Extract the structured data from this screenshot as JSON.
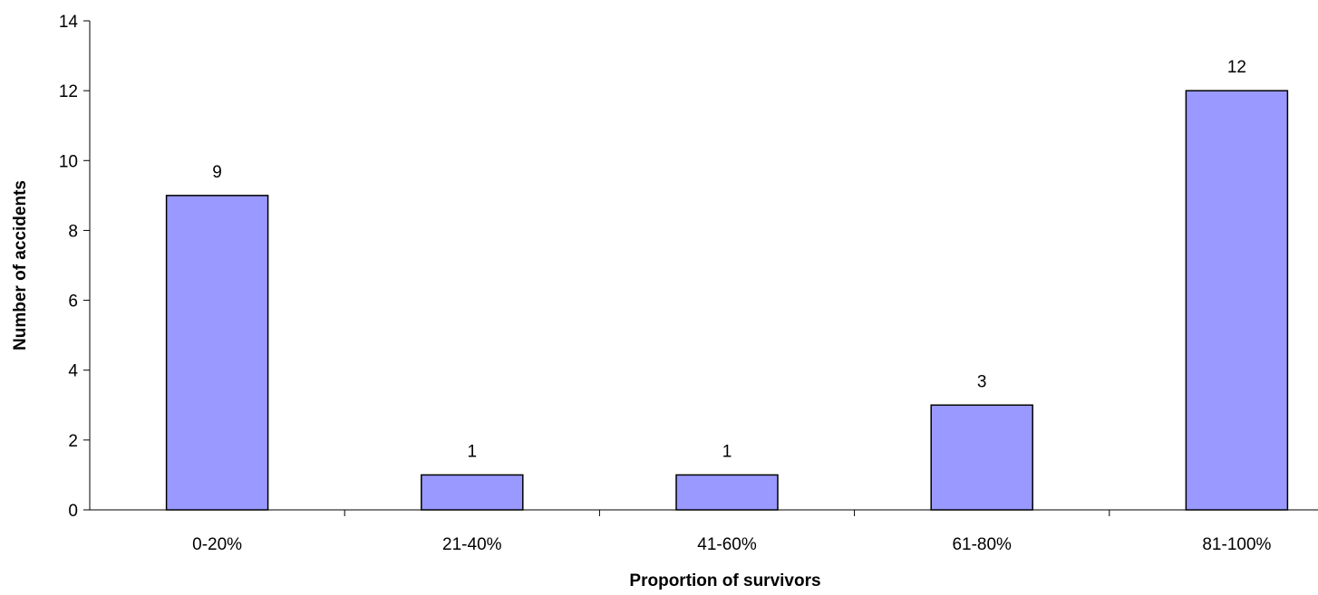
{
  "chart_data": {
    "type": "bar",
    "categories": [
      "0-20%",
      "21-40%",
      "41-60%",
      "61-80%",
      "81-100%"
    ],
    "values": [
      9,
      1,
      1,
      3,
      12
    ],
    "data_labels": [
      "9",
      "1",
      "1",
      "3",
      "12"
    ],
    "xlabel": "Proportion of survivors",
    "ylabel": "Number of accidents",
    "ylim": [
      0,
      14
    ],
    "yticks": [
      0,
      2,
      4,
      6,
      8,
      10,
      12,
      14
    ],
    "grid": false,
    "legend": "none",
    "bar_color": "#9999ff",
    "bar_edge_color": "#000000"
  }
}
